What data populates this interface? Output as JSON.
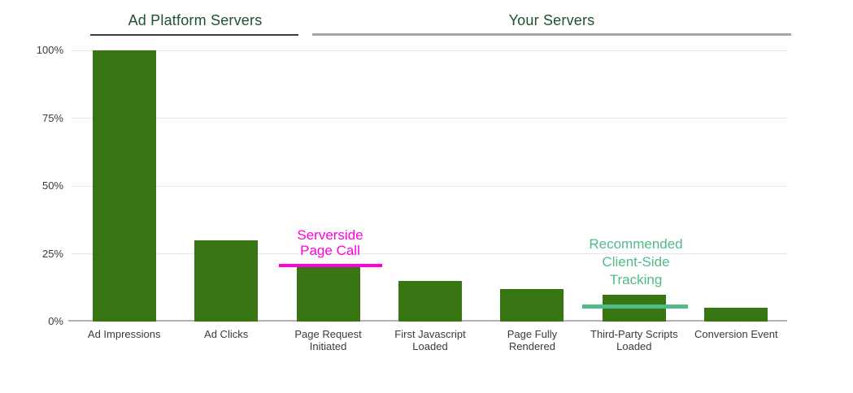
{
  "colors": {
    "background": "#ffffff",
    "bar": "#377612",
    "header_text": "#20512b",
    "axis_label": "#3b3b3b",
    "grid_line": "#e7e7e7",
    "axis_line": "#b1b1b1",
    "serverside_annotation": "#ff00dd",
    "client_side_annotation": "#50ba88",
    "ad_platform_underline": "#3d3d3d",
    "your_servers_underline": "#a6a6a6"
  },
  "chart_data": {
    "type": "bar",
    "categories": [
      "Ad Impressions",
      "Ad Clicks",
      "Page Request Initiated",
      "First Javascript Loaded",
      "Page Fully Rendered",
      "Third-Party Scripts Loaded",
      "Conversion Event"
    ],
    "values": [
      100,
      30,
      20,
      15,
      12,
      10,
      5
    ],
    "unit": "%",
    "title": "",
    "xlabel": "",
    "ylabel": "",
    "ylim": [
      0,
      100
    ],
    "yticks": [
      0,
      25,
      50,
      75,
      100
    ],
    "ytick_labels": [
      "0%",
      "25%",
      "50%",
      "75%",
      "100%"
    ],
    "grid": true,
    "legend": false,
    "bar_color": "#377612",
    "sections": [
      {
        "label": "Ad Platform Servers",
        "categories": [
          "Ad Impressions",
          "Ad Clicks"
        ],
        "underline_color": "#3d3d3d"
      },
      {
        "label": "Your Servers",
        "categories": [
          "Page Request Initiated",
          "First Javascript Loaded",
          "Page Fully Rendered",
          "Third-Party Scripts Loaded",
          "Conversion Event"
        ],
        "underline_color": "#a6a6a6"
      }
    ],
    "annotations": [
      {
        "lines": [
          "Serverside",
          "Page Call"
        ],
        "color": "#ff00dd",
        "target_category": "Page Request Initiated"
      },
      {
        "lines": [
          "Recommended",
          "Client-Side",
          "Tracking"
        ],
        "color": "#50ba88",
        "target_category": "Third-Party Scripts Loaded"
      }
    ]
  }
}
